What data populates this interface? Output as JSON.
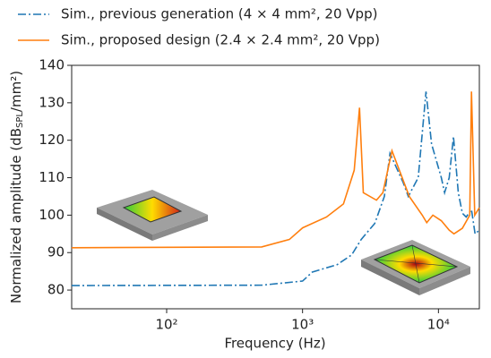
{
  "chart_data": {
    "type": "line",
    "ylabel": [
      "Normalized amplitude (dB",
      "SPL",
      "/mm²)"
    ],
    "xlabel": "Frequency (Hz)",
    "xscale": "log",
    "xlim": [
      20,
      20000
    ],
    "xticks": [
      {
        "value": 100,
        "label": "10²"
      },
      {
        "value": 1000,
        "label": "10³"
      },
      {
        "value": 10000,
        "label": "10⁴"
      }
    ],
    "ylim": [
      75,
      140
    ],
    "yticks": [
      80,
      90,
      100,
      110,
      120,
      130,
      140
    ],
    "legend": "top",
    "series": [
      {
        "name": "Sim., previous generation (4 × 4 mm², 20 Vpp)",
        "color": "#1f77b4",
        "linestyle": "dashdot",
        "x": [
          20,
          500,
          1000,
          1180,
          1800,
          2300,
          2700,
          3400,
          4000,
          4400,
          5500,
          6000,
          7100,
          8100,
          8900,
          10500,
          11100,
          12000,
          12900,
          14000,
          15000,
          16000,
          17500,
          18600,
          20000
        ],
        "values": [
          81.2,
          81.3,
          82.4,
          84.8,
          86.8,
          89.4,
          93.5,
          97.8,
          105,
          116.5,
          108.7,
          105,
          110,
          133,
          119,
          110,
          106,
          110,
          121,
          106,
          100.5,
          99.5,
          101.5,
          95,
          96
        ]
      },
      {
        "name": "Sim., proposed design (2.4 × 2.4 mm², 20 Vpp)",
        "color": "#ff7f0e",
        "linestyle": "solid",
        "x": [
          20,
          500,
          800,
          1000,
          1500,
          2000,
          2400,
          2625,
          2800,
          3500,
          3900,
          4550,
          6100,
          7600,
          8200,
          9100,
          10500,
          12000,
          13000,
          15000,
          17000,
          17500,
          18500,
          20000
        ],
        "values": [
          91.3,
          91.5,
          93.5,
          96.6,
          99.5,
          103,
          112,
          128.7,
          106,
          104,
          106,
          117.2,
          105,
          100,
          98,
          100,
          98.5,
          96,
          95,
          96.5,
          100,
          133,
          100,
          102
        ]
      }
    ]
  }
}
